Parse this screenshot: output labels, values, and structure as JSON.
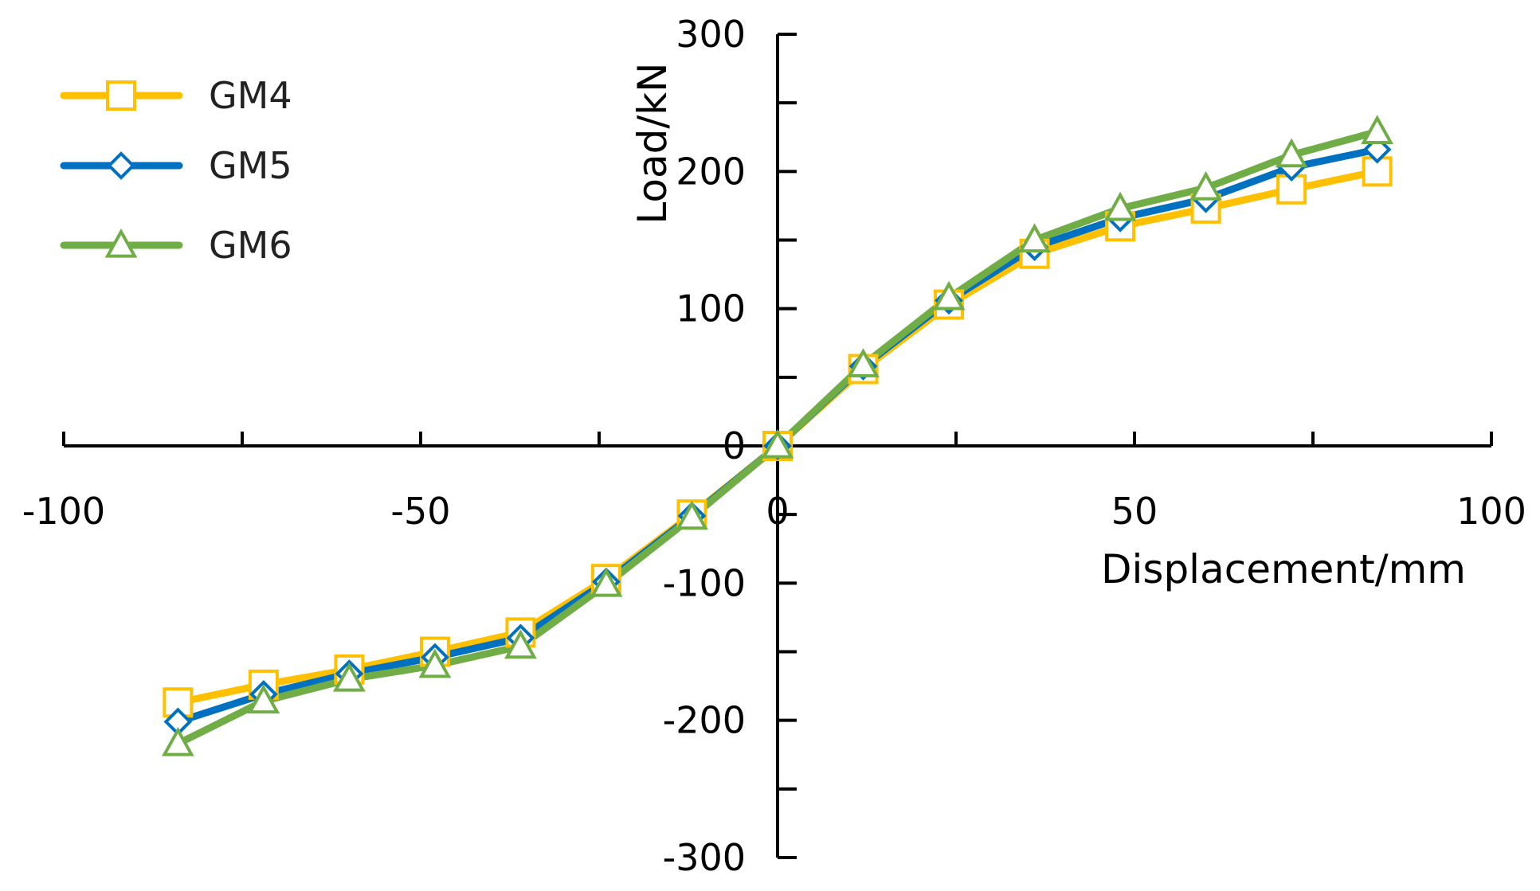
{
  "chart_data": {
    "type": "line",
    "title": "",
    "xlabel": "Displacement/mm",
    "ylabel": "Load/kN",
    "xlim": [
      -100,
      100
    ],
    "ylim": [
      -300,
      300
    ],
    "x_ticks": [
      -100,
      -50,
      0,
      50,
      100
    ],
    "x_tick_labels": [
      "-100",
      "-50",
      "0",
      "50",
      "100"
    ],
    "y_ticks": [
      -300,
      -200,
      -100,
      0,
      100,
      200,
      300
    ],
    "y_tick_labels": [
      "-300",
      "-200",
      "-100",
      "0",
      "100",
      "200",
      "300"
    ],
    "grid": false,
    "legend_position": "top-left",
    "series": [
      {
        "name": "GM4",
        "color": "#FFC000",
        "marker": "square",
        "x": [
          -84,
          -72,
          -60,
          -48,
          -36,
          -24,
          -12,
          0,
          12,
          24,
          36,
          48,
          60,
          72,
          84
        ],
        "y": [
          -187,
          -174,
          -163,
          -150,
          -136,
          -97,
          -50,
          0,
          56,
          103,
          140,
          160,
          173,
          187,
          200
        ]
      },
      {
        "name": "GM5",
        "color": "#0070C0",
        "marker": "diamond",
        "x": [
          -84,
          -72,
          -60,
          -48,
          -36,
          -24,
          -12,
          0,
          12,
          24,
          36,
          48,
          60,
          72,
          84
        ],
        "y": [
          -201,
          -181,
          -166,
          -154,
          -140,
          -99,
          -51,
          0,
          58,
          106,
          145,
          166,
          180,
          203,
          216
        ]
      },
      {
        "name": "GM6",
        "color": "#70AD47",
        "marker": "triangle",
        "x": [
          -84,
          -72,
          -60,
          -48,
          -36,
          -24,
          -12,
          0,
          12,
          24,
          36,
          48,
          60,
          72,
          84
        ],
        "y": [
          -217,
          -186,
          -170,
          -160,
          -146,
          -101,
          -52,
          0,
          59,
          108,
          150,
          173,
          188,
          212,
          229
        ]
      }
    ]
  }
}
